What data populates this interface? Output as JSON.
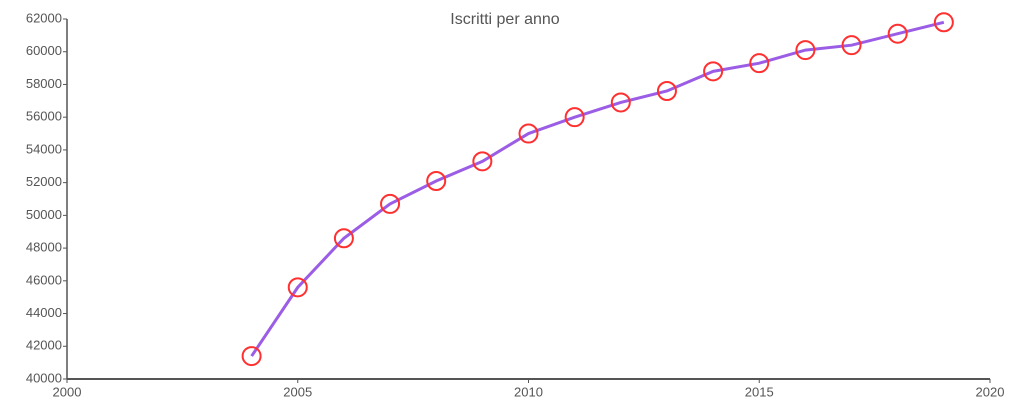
{
  "chart_data": {
    "type": "line",
    "title": "Iscritti per anno",
    "x": [
      2004,
      2005,
      2006,
      2007,
      2008,
      2009,
      2010,
      2011,
      2012,
      2013,
      2014,
      2015,
      2016,
      2017,
      2018,
      2019
    ],
    "series": [
      {
        "name": "Iscritti",
        "color": "#9b5de5",
        "marker_color": "#ff3030",
        "values": [
          41400,
          45600,
          48600,
          50700,
          52100,
          53300,
          55000,
          56000,
          56900,
          57600,
          58800,
          59300,
          60100,
          60400,
          61100,
          61800
        ]
      }
    ],
    "xlim": [
      2000,
      2020
    ],
    "xticks": [
      2000,
      2005,
      2010,
      2015,
      2020
    ],
    "ylim": [
      40000,
      62000
    ],
    "yticks": [
      40000,
      42000,
      44000,
      46000,
      48000,
      50000,
      52000,
      54000,
      56000,
      58000,
      60000,
      62000
    ]
  }
}
